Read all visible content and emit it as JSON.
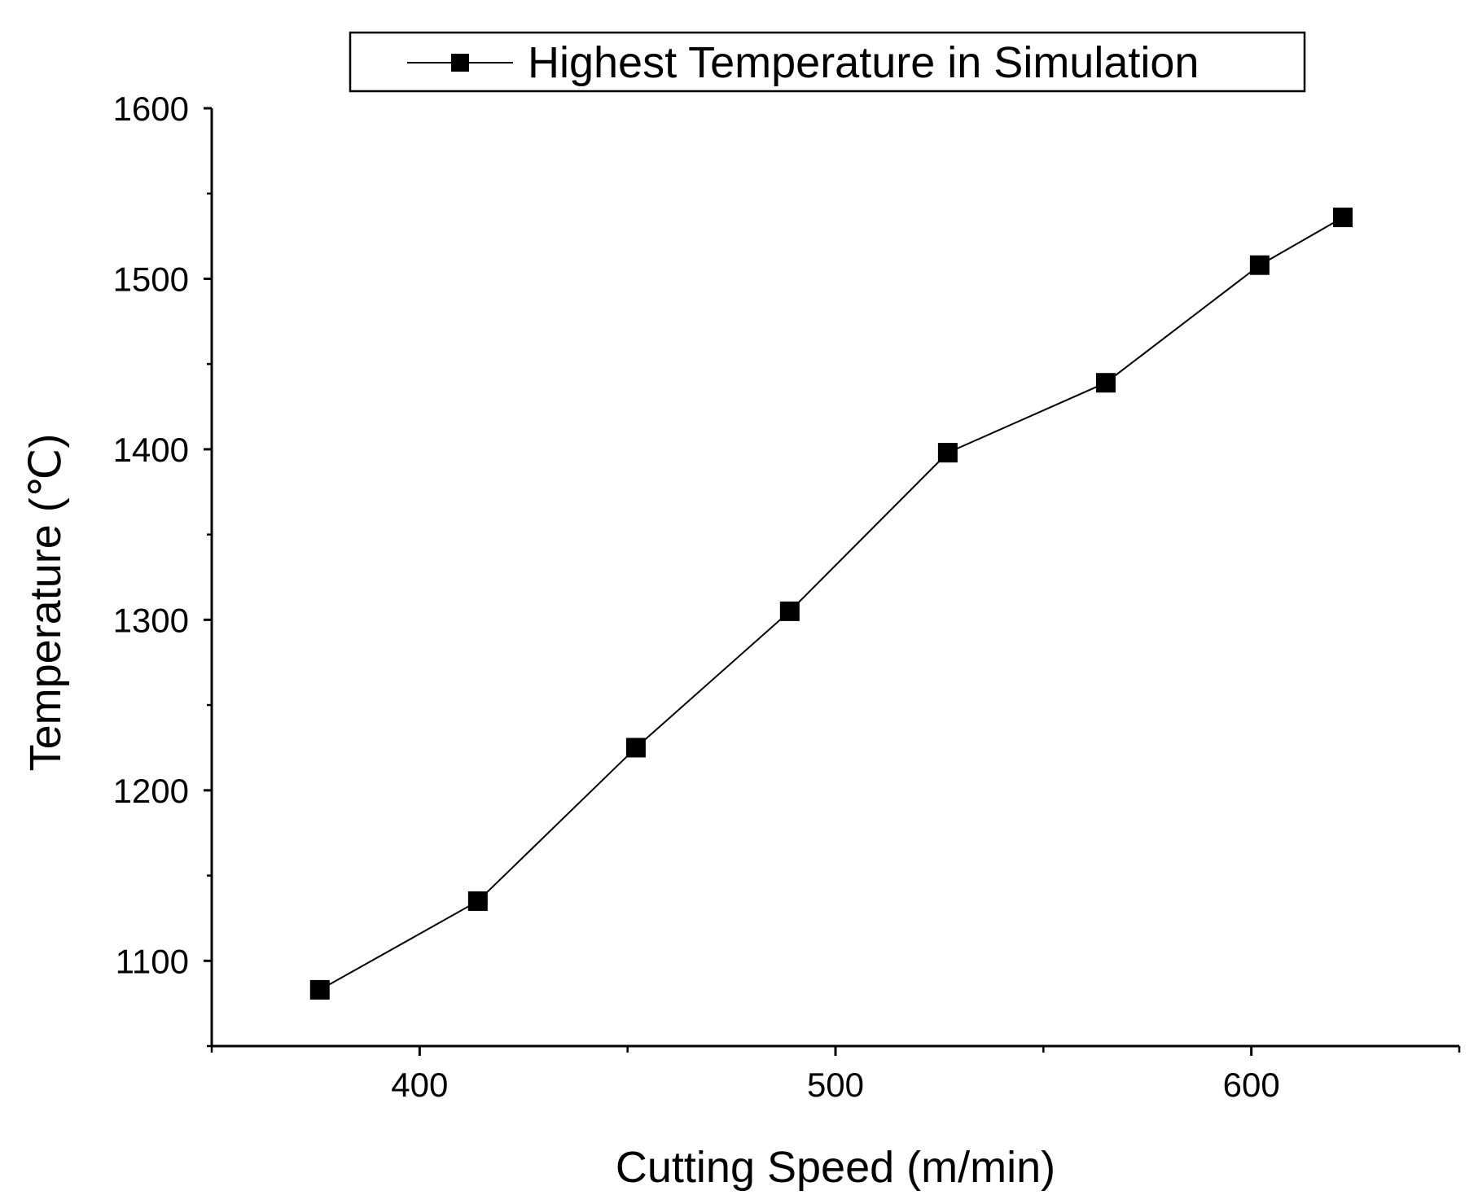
{
  "chart_data": {
    "type": "line",
    "title": "",
    "xlabel": "Cutting Speed (m/min)",
    "ylabel": "Temperature (℃)",
    "xlim": [
      350,
      650
    ],
    "ylim": [
      1050,
      1600
    ],
    "x_ticks": [
      400,
      500,
      600
    ],
    "x_tick_labels": [
      "400",
      "500",
      "600"
    ],
    "y_ticks": [
      1100,
      1200,
      1300,
      1400,
      1500,
      1600
    ],
    "y_tick_labels": [
      "1100",
      "1200",
      "1300",
      "1400",
      "1500",
      "1600"
    ],
    "grid": false,
    "legend_position": "top",
    "series": [
      {
        "name": "Highest Temperature in Simulation",
        "marker": "square",
        "color": "#000000",
        "x": [
          376,
          414,
          452,
          489,
          527,
          565,
          602,
          622
        ],
        "y": [
          1083,
          1135,
          1225,
          1305,
          1398,
          1439,
          1508,
          1536
        ]
      }
    ]
  }
}
